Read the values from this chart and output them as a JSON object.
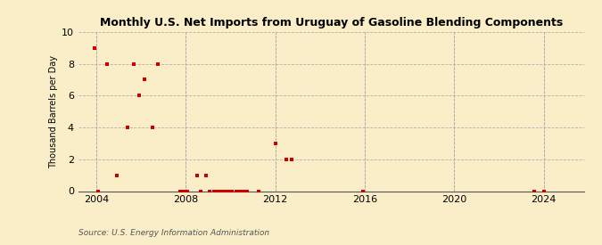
{
  "title": "Monthly U.S. Net Imports from Uruguay of Gasoline Blending Components",
  "ylabel": "Thousand Barrels per Day",
  "source": "Source: U.S. Energy Information Administration",
  "background_color": "#faeec8",
  "marker_color": "#cc0000",
  "xlim": [
    2003.2,
    2025.8
  ],
  "ylim": [
    0,
    10
  ],
  "yticks": [
    0,
    2,
    4,
    6,
    8,
    10
  ],
  "xticks": [
    2004,
    2008,
    2012,
    2016,
    2020,
    2024
  ],
  "data_points": [
    [
      2003.92,
      9.0
    ],
    [
      2004.08,
      0.0
    ],
    [
      2004.5,
      8.0
    ],
    [
      2004.92,
      1.0
    ],
    [
      2005.42,
      4.0
    ],
    [
      2005.67,
      8.0
    ],
    [
      2005.92,
      6.0
    ],
    [
      2006.17,
      7.0
    ],
    [
      2006.5,
      4.0
    ],
    [
      2006.75,
      8.0
    ],
    [
      2007.75,
      0.0
    ],
    [
      2007.92,
      0.0
    ],
    [
      2008.08,
      0.0
    ],
    [
      2008.5,
      1.0
    ],
    [
      2008.67,
      0.0
    ],
    [
      2008.92,
      1.0
    ],
    [
      2009.08,
      0.0
    ],
    [
      2009.25,
      0.0
    ],
    [
      2009.42,
      0.0
    ],
    [
      2009.58,
      0.0
    ],
    [
      2009.75,
      0.0
    ],
    [
      2009.92,
      0.0
    ],
    [
      2010.08,
      0.0
    ],
    [
      2010.25,
      0.0
    ],
    [
      2010.42,
      0.0
    ],
    [
      2010.58,
      0.0
    ],
    [
      2010.75,
      0.0
    ],
    [
      2011.25,
      0.0
    ],
    [
      2012.0,
      3.0
    ],
    [
      2012.5,
      2.0
    ],
    [
      2012.75,
      2.0
    ],
    [
      2015.92,
      0.0
    ],
    [
      2023.58,
      0.0
    ],
    [
      2024.0,
      0.0
    ]
  ]
}
